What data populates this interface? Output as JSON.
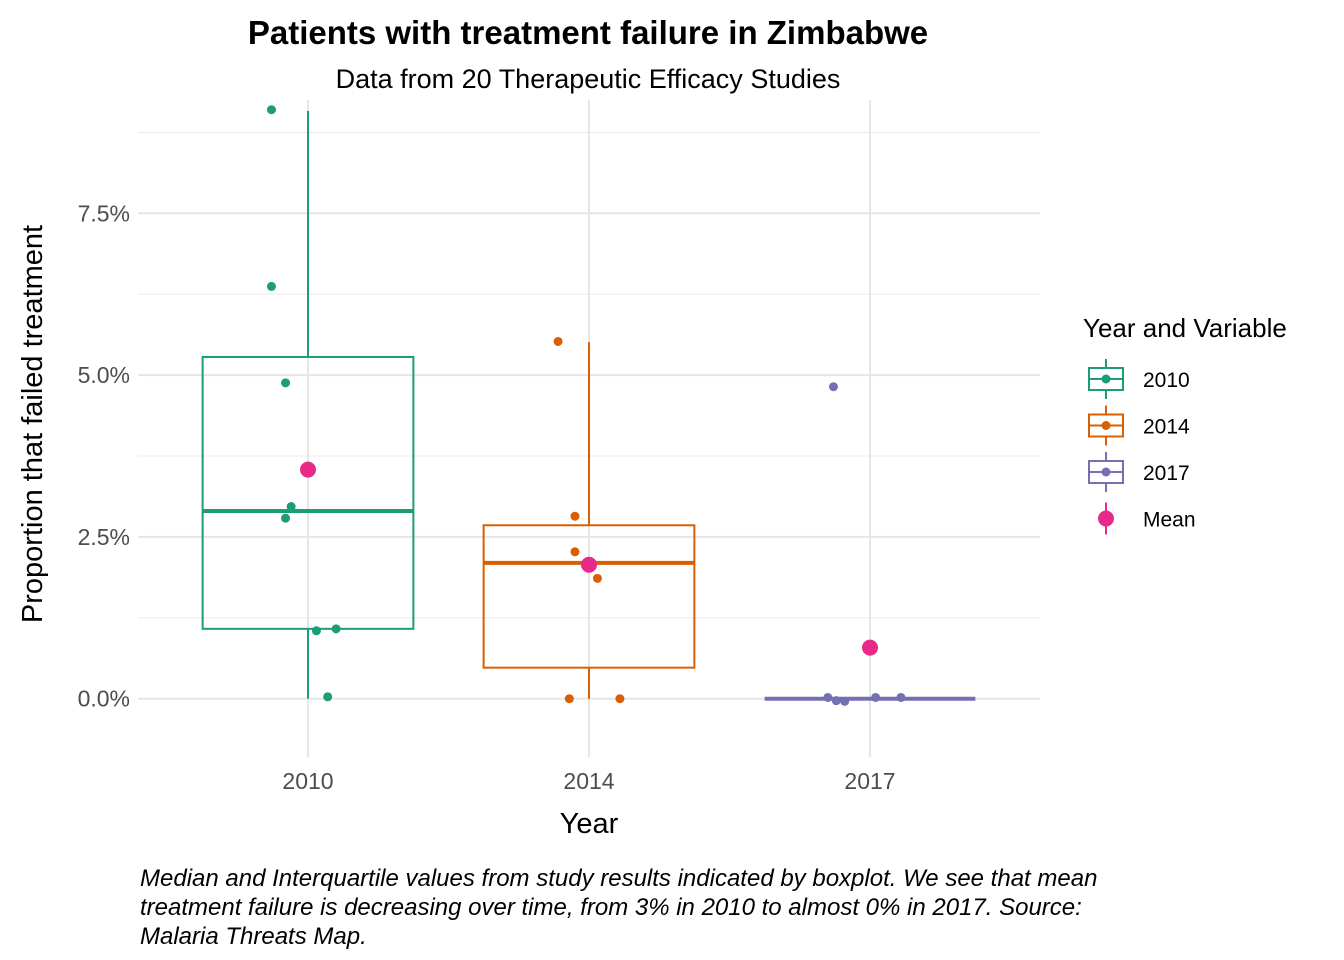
{
  "chart_data": {
    "type": "boxplot",
    "title": "Patients with treatment failure in Zimbabwe",
    "subtitle": "Data from 20 Therapeutic Efficacy Studies",
    "xlabel": "Year",
    "ylabel": "Proportion that failed treatment",
    "categories": [
      "2010",
      "2014",
      "2017"
    ],
    "ylim": [
      -0.009,
      0.0925
    ],
    "yticks": [
      {
        "value": 0.0,
        "label": "0.0%"
      },
      {
        "value": 0.025,
        "label": "2.5%"
      },
      {
        "value": 0.05,
        "label": "5.0%"
      },
      {
        "value": 0.075,
        "label": "7.5%"
      }
    ],
    "grid": true,
    "series": [
      {
        "name": "2010",
        "color": "#1b9e77",
        "box": {
          "whisker_low": 0.0,
          "q1": 0.0108,
          "median": 0.029,
          "q3": 0.0528,
          "whisker_high": 0.0908
        },
        "points": [
          {
            "x": -0.13,
            "y": 0.091
          },
          {
            "x": -0.13,
            "y": 0.0637
          },
          {
            "x": -0.08,
            "y": 0.0488
          },
          {
            "x": -0.06,
            "y": 0.0297
          },
          {
            "x": -0.08,
            "y": 0.0279
          },
          {
            "x": 0.03,
            "y": 0.0105
          },
          {
            "x": 0.1,
            "y": 0.0108
          },
          {
            "x": 0.07,
            "y": 0.0003
          }
        ],
        "mean": 0.0354
      },
      {
        "name": "2014",
        "color": "#d95f02",
        "box": {
          "whisker_low": 0.0,
          "q1": 0.0048,
          "median": 0.021,
          "q3": 0.0268,
          "whisker_high": 0.0551
        },
        "points": [
          {
            "x": -0.11,
            "y": 0.0552
          },
          {
            "x": -0.05,
            "y": 0.0282
          },
          {
            "x": -0.05,
            "y": 0.0227
          },
          {
            "x": 0.03,
            "y": 0.0186
          },
          {
            "x": -0.07,
            "y": 0.0
          },
          {
            "x": 0.11,
            "y": 0.0
          }
        ],
        "mean": 0.0207
      },
      {
        "name": "2017",
        "color": "#7570b3",
        "box": {
          "whisker_low": 0.0,
          "q1": 0.0,
          "median": 0.0,
          "q3": 0.0,
          "whisker_high": 0.0
        },
        "points": [
          {
            "x": -0.13,
            "y": 0.0482
          },
          {
            "x": -0.15,
            "y": 0.0002
          },
          {
            "x": -0.12,
            "y": -0.0003
          },
          {
            "x": -0.09,
            "y": -0.0004
          },
          {
            "x": 0.02,
            "y": 0.0002
          },
          {
            "x": 0.11,
            "y": 0.0002
          }
        ],
        "mean": 0.0079
      }
    ],
    "mean_color": "#e7298a",
    "legend": {
      "title": "Year and Variable",
      "position": "right",
      "items": [
        {
          "label": "2010",
          "color": "#1b9e77",
          "kind": "box"
        },
        {
          "label": "2014",
          "color": "#d95f02",
          "kind": "box"
        },
        {
          "label": "2017",
          "color": "#7570b3",
          "kind": "box"
        },
        {
          "label": "Mean",
          "color": "#e7298a",
          "kind": "mean"
        }
      ]
    },
    "caption": "Median and Interquartile values from study results indicated by boxplot. We see that mean treatment failure is decreasing over time, from 3% in 2010 to almost 0% in 2017. Source: Malaria Threats Map."
  }
}
